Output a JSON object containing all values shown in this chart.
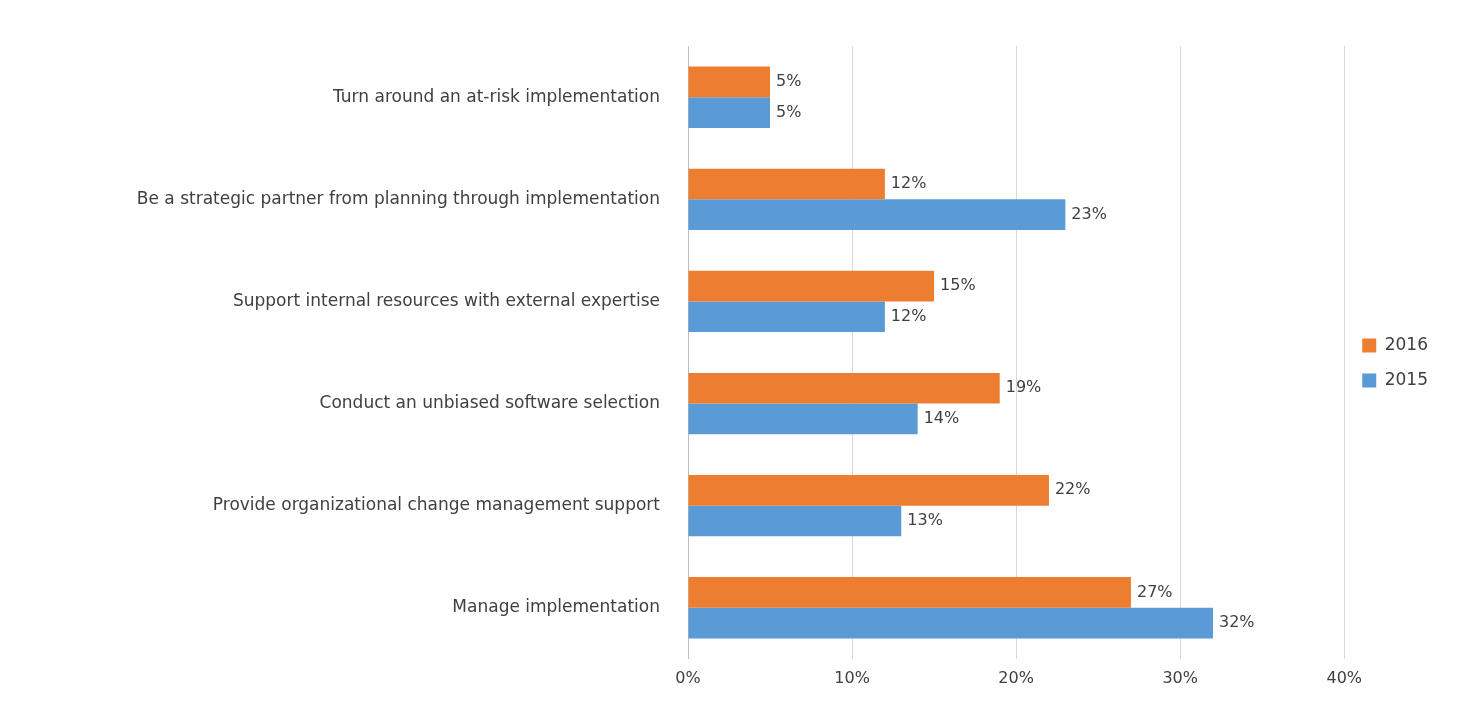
{
  "chart_data": {
    "type": "bar",
    "orientation": "horizontal",
    "categories": [
      "Turn around an at-risk implementation",
      "Be a strategic partner from planning through implementation",
      "Support internal resources with external expertise",
      "Conduct an unbiased software selection",
      "Provide organizational change management support",
      "Manage implementation"
    ],
    "series": [
      {
        "name": "2016",
        "color": "#ed7d31",
        "values": [
          5,
          12,
          15,
          19,
          22,
          27
        ],
        "value_labels": [
          "5%",
          "12%",
          "15%",
          "19%",
          "22%",
          "27%"
        ]
      },
      {
        "name": "2015",
        "color": "#5b9bd5",
        "values": [
          5,
          23,
          12,
          14,
          13,
          32
        ],
        "value_labels": [
          "5%",
          "23%",
          "12%",
          "14%",
          "13%",
          "32%"
        ]
      }
    ],
    "xlim": [
      0,
      40
    ],
    "xticks": [
      {
        "value": 0,
        "label": "0%"
      },
      {
        "value": 10,
        "label": "10%"
      },
      {
        "value": 20,
        "label": "20%"
      },
      {
        "value": 30,
        "label": "30%"
      },
      {
        "value": 40,
        "label": "40%"
      }
    ],
    "grid": "x",
    "legend": "right"
  }
}
